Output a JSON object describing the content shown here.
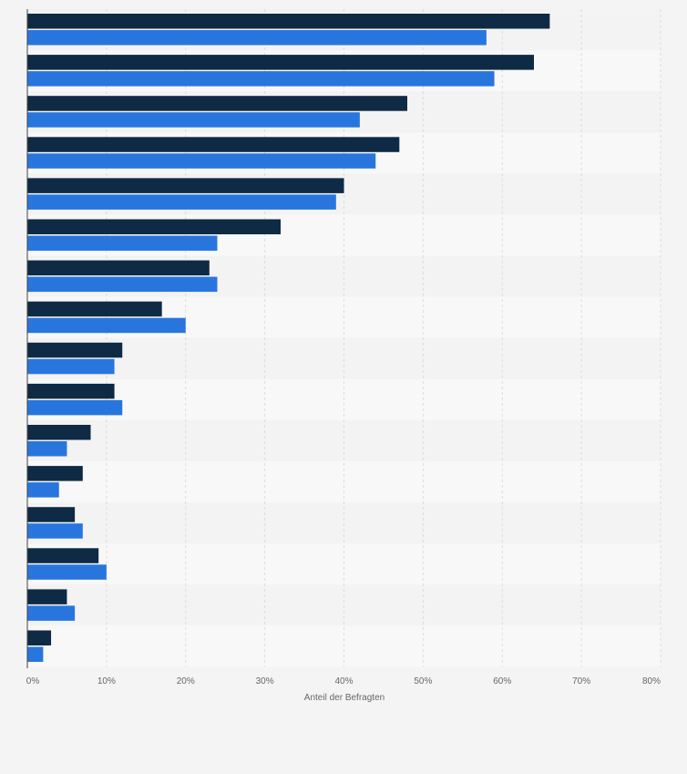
{
  "chart_data": {
    "type": "bar",
    "orientation": "horizontal",
    "xlabel": "Anteil der Befragten",
    "xlim": [
      0,
      80
    ],
    "x_ticks": [
      "0%",
      "10%",
      "20%",
      "30%",
      "40%",
      "50%",
      "60%",
      "70%",
      "80%"
    ],
    "categories": [
      "",
      "",
      "",
      "",
      "",
      "",
      "",
      "",
      "",
      "",
      "",
      "",
      "",
      "",
      "",
      ""
    ],
    "series": [
      {
        "values": [
          66,
          64,
          48,
          47,
          40,
          32,
          23,
          17,
          12,
          11,
          8,
          7,
          6,
          9,
          5,
          3
        ],
        "color": "#0f2a44"
      },
      {
        "values": [
          58,
          59,
          42,
          44,
          39,
          24,
          24,
          20,
          11,
          12,
          5,
          4,
          7,
          10,
          6,
          2
        ],
        "color": "#2876dd"
      }
    ],
    "grid": true,
    "legend": "none"
  }
}
